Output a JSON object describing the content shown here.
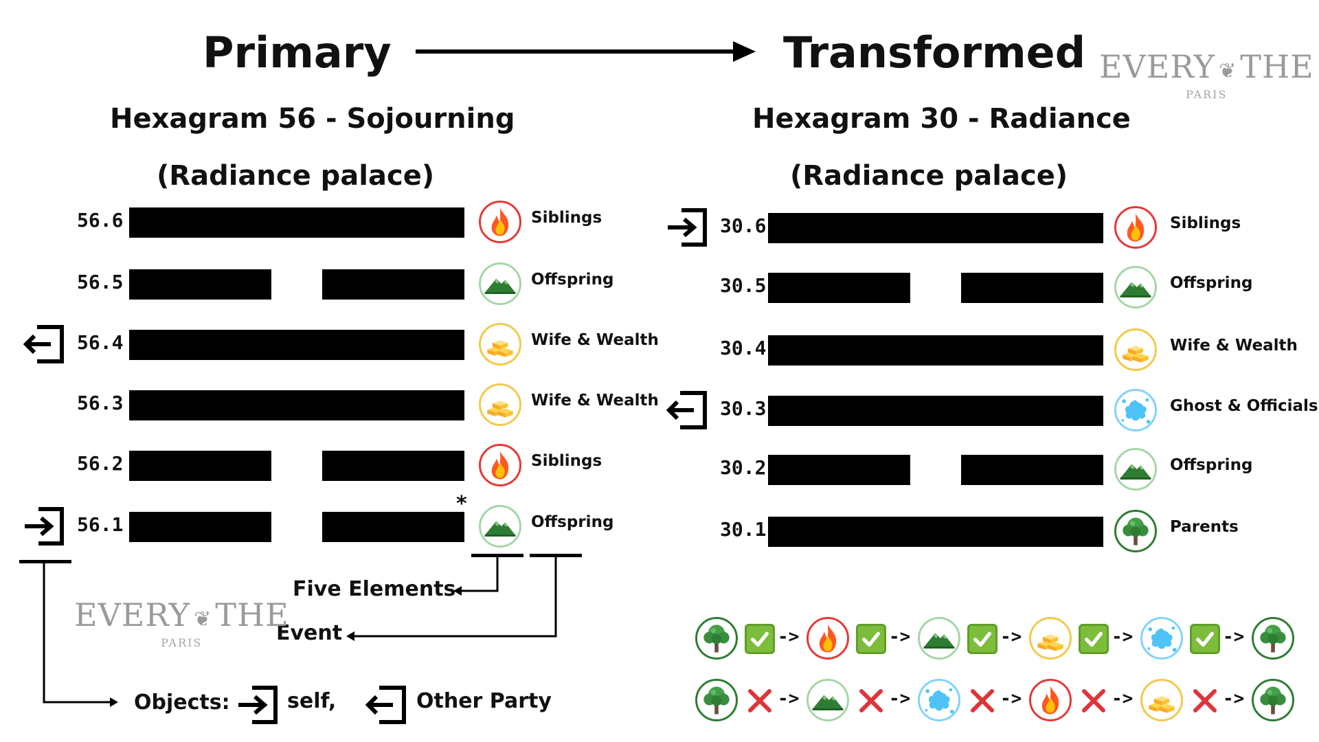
{
  "header": {
    "primary": "Primary",
    "transformed": "Transformed"
  },
  "watermark": {
    "brand": "EVERY",
    "brand_b": "THE",
    "city": "PARIS"
  },
  "primary": {
    "hexagram_title": "Hexagram 56 - Sojourning",
    "palace": "(Radiance palace)",
    "lines": [
      {
        "number": "56.6",
        "type": "solid",
        "element": "fire-icon",
        "relation": "Siblings"
      },
      {
        "number": "56.5",
        "type": "broken",
        "element": "mountain-icon",
        "relation": "Offspring"
      },
      {
        "number": "56.4",
        "type": "solid",
        "element": "gold-icon",
        "relation": "Wife & Wealth",
        "object": "other-party"
      },
      {
        "number": "56.3",
        "type": "solid",
        "element": "gold-icon",
        "relation": "Wife & Wealth"
      },
      {
        "number": "56.2",
        "type": "broken",
        "element": "fire-icon",
        "relation": "Siblings"
      },
      {
        "number": "56.1",
        "type": "broken",
        "element": "mountain-icon",
        "relation": "Offspring",
        "object": "self",
        "moving_mark": "*"
      }
    ]
  },
  "transformed": {
    "hexagram_title": "Hexagram 30 - Radiance",
    "palace": "(Radiance palace)",
    "lines": [
      {
        "number": "30.6",
        "type": "solid",
        "element": "fire-icon",
        "relation": "Siblings",
        "object": "self"
      },
      {
        "number": "30.5",
        "type": "broken",
        "element": "mountain-icon",
        "relation": "Offspring"
      },
      {
        "number": "30.4",
        "type": "solid",
        "element": "gold-icon",
        "relation": "Wife & Wealth"
      },
      {
        "number": "30.3",
        "type": "solid",
        "element": "water-icon",
        "relation": "Ghost & Officials",
        "object": "other-party"
      },
      {
        "number": "30.2",
        "type": "broken",
        "element": "mountain-icon",
        "relation": "Offspring"
      },
      {
        "number": "30.1",
        "type": "solid",
        "element": "tree-icon",
        "relation": "Parents"
      }
    ]
  },
  "legend": {
    "five_elements": "Five Elements",
    "event": "Event",
    "objects": "Objects:",
    "self": "self,",
    "other_party": "Other Party"
  },
  "cycles": {
    "arrow": "->",
    "generating": [
      "tree-icon",
      "check-icon",
      "fire-icon",
      "check-icon",
      "mountain-icon",
      "check-icon",
      "gold-icon",
      "check-icon",
      "water-icon",
      "check-icon",
      "tree-icon"
    ],
    "controlling": [
      "tree-icon",
      "cross-icon",
      "mountain-icon",
      "cross-icon",
      "water-icon",
      "cross-icon",
      "fire-icon",
      "cross-icon",
      "gold-icon",
      "cross-icon",
      "tree-icon"
    ]
  },
  "colors": {
    "fire": "#e53935",
    "earth": "#2e7d32",
    "metal": "#f2c94c",
    "water": "#4fc3f7",
    "wood": "#2e7d32",
    "check": "#7cbd3b",
    "cross": "#e0333a"
  }
}
